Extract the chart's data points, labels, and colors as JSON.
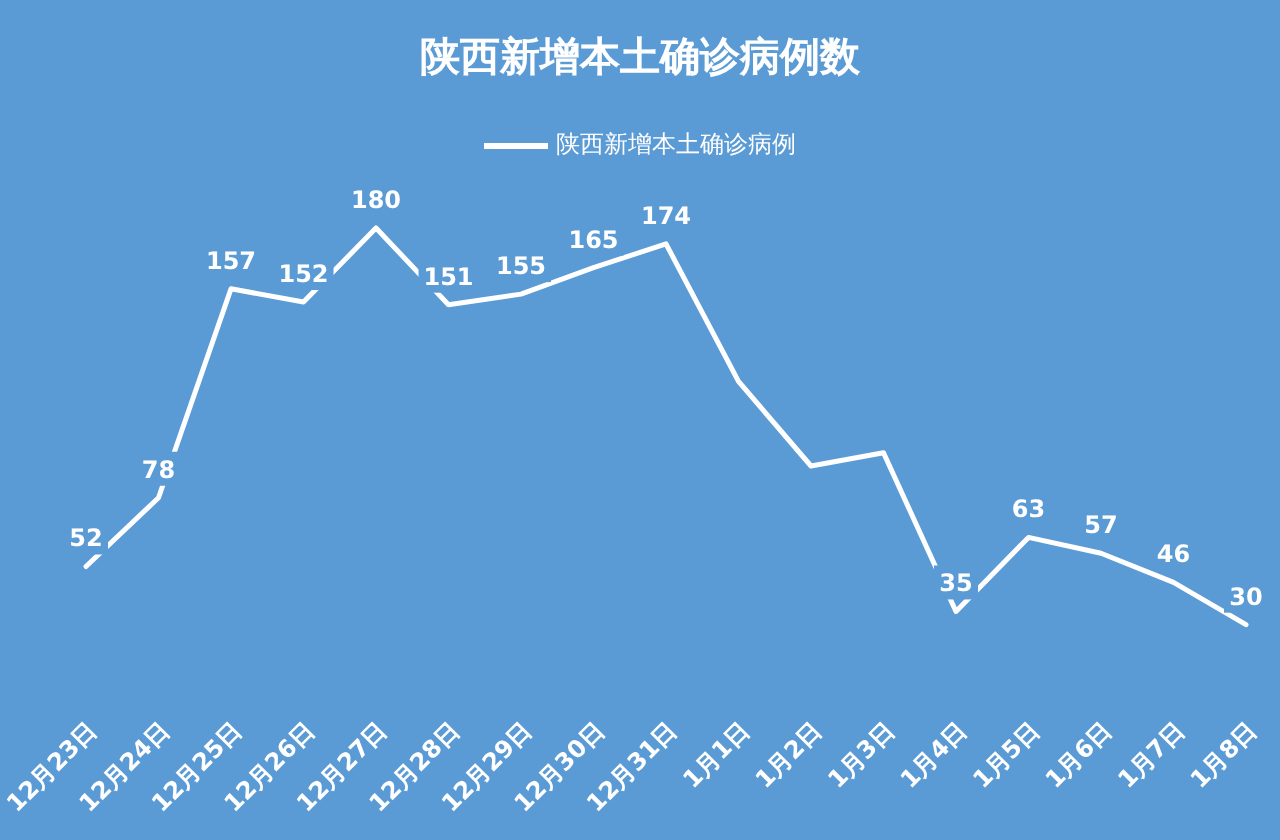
{
  "chart_data": {
    "type": "line",
    "title": "陕西新增本土确诊病例数",
    "categories": [
      "12月23日",
      "12月24日",
      "12月25日",
      "12月26日",
      "12月27日",
      "12月28日",
      "12月29日",
      "12月30日",
      "12月31日",
      "1月1日",
      "1月2日",
      "1月3日",
      "1月4日",
      "1月5日",
      "1月6日",
      "1月7日",
      "1月8日"
    ],
    "series": [
      {
        "name": "陕西新增本土确诊病例",
        "color": "#ffffff",
        "values": [
          52,
          78,
          157,
          152,
          180,
          151,
          155,
          165,
          174,
          122,
          90,
          95,
          35,
          63,
          57,
          46,
          30
        ],
        "value_labels": [
          "52",
          "78",
          "157",
          "152",
          "180",
          "151",
          "155",
          "165",
          "174",
          null,
          null,
          null,
          "35",
          "63",
          "57",
          "46",
          "30"
        ]
      }
    ],
    "legend": "top",
    "marker": "none",
    "line_style": "solid"
  }
}
